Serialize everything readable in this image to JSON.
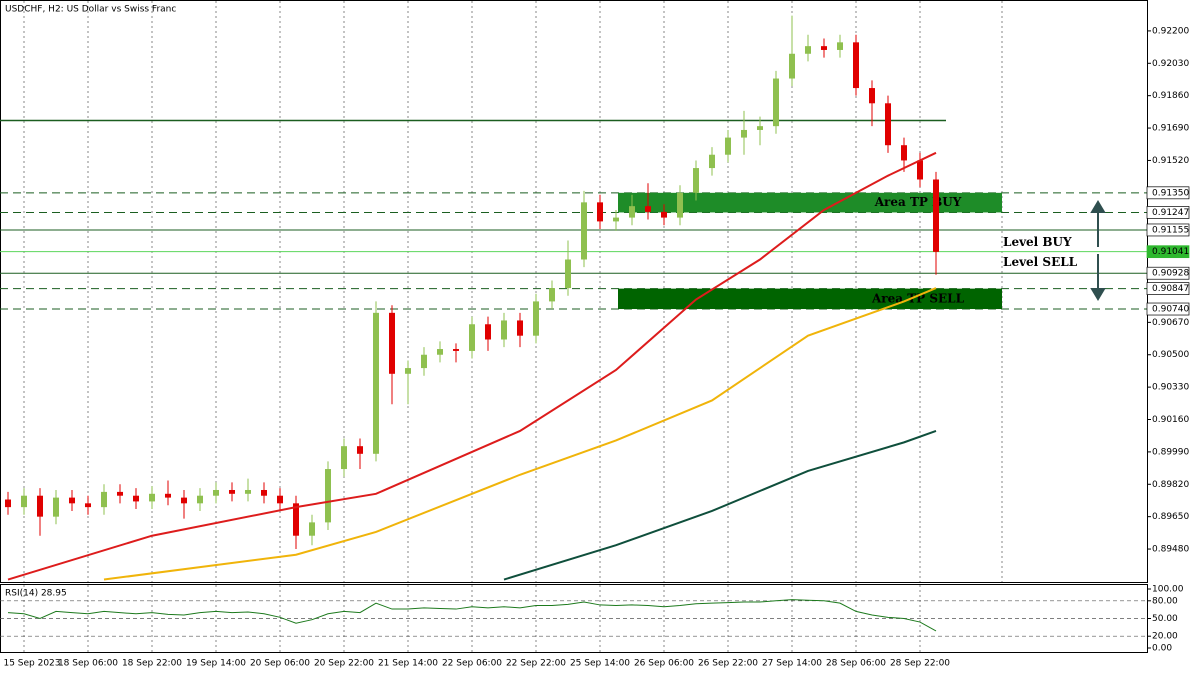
{
  "chart_data": {
    "type": "candlestick",
    "title": "USDCHF, H2:  US Dollar vs Swiss Franc",
    "up_color": "#8fc04f",
    "down_color": "#e00000",
    "categories": [
      null,
      "15 Sep 2023",
      null,
      null,
      null,
      "18 Sep 06:00",
      null,
      null,
      null,
      "18 Sep 22:00",
      null,
      null,
      null,
      "19 Sep 14:00",
      null,
      null,
      null,
      "20 Sep 06:00",
      null,
      null,
      null,
      "20 Sep 22:00",
      null,
      null,
      null,
      "21 Sep 14:00",
      null,
      null,
      null,
      "22 Sep 06:00",
      null,
      null,
      null,
      "22 Sep 22:00",
      null,
      null,
      null,
      "25 Sep 14:00",
      null,
      null,
      null,
      "26 Sep 06:00",
      null,
      null,
      null,
      "26 Sep 22:00",
      null,
      null,
      null,
      "27 Sep 14:00",
      null,
      null,
      null,
      "28 Sep 06:00",
      null,
      null,
      null,
      "28 Sep 22:00",
      null
    ],
    "open": [
      0.8974,
      0.897,
      0.8976,
      0.8965,
      0.8975,
      0.8972,
      0.897,
      0.8978,
      0.8976,
      0.8973,
      0.8977,
      0.8975,
      0.8972,
      0.8976,
      0.8979,
      0.8977,
      0.8979,
      0.8976,
      0.8972,
      0.8955,
      0.8962,
      0.899,
      0.9002,
      0.8998,
      0.9072,
      0.904,
      0.9043,
      0.905,
      0.9053,
      0.9052,
      0.9066,
      0.9058,
      0.9068,
      0.906,
      0.9078,
      0.9085,
      0.91,
      0.913,
      0.912,
      0.9122,
      0.9128,
      0.9125,
      0.9122,
      0.9135,
      0.9148,
      0.9155,
      0.9164,
      0.9168,
      0.917,
      0.9195,
      0.9208,
      0.9212,
      0.921,
      0.9214,
      0.919,
      0.9182,
      0.916,
      0.9152,
      0.9142
    ],
    "high": [
      0.8978,
      0.898,
      0.898,
      0.8979,
      0.8979,
      0.8976,
      0.8982,
      0.8982,
      0.898,
      0.8981,
      0.8984,
      0.8979,
      0.898,
      0.8983,
      0.8983,
      0.8985,
      0.8983,
      0.898,
      0.8976,
      0.8966,
      0.8994,
      0.9006,
      0.9006,
      0.9078,
      0.9076,
      0.9047,
      0.9054,
      0.9057,
      0.9056,
      0.907,
      0.907,
      0.9072,
      0.9072,
      0.9082,
      0.9089,
      0.911,
      0.9136,
      0.9134,
      0.9126,
      0.9134,
      0.914,
      0.9129,
      0.9139,
      0.9152,
      0.9159,
      0.9168,
      0.9178,
      0.9175,
      0.9199,
      0.9228,
      0.9218,
      0.9216,
      0.9218,
      0.9218,
      0.9194,
      0.9186,
      0.9164,
      0.9156,
      0.9146
    ],
    "low": [
      0.8966,
      0.8966,
      0.8955,
      0.8961,
      0.8968,
      0.8966,
      0.8966,
      0.8972,
      0.8969,
      0.8969,
      0.8971,
      0.8964,
      0.8968,
      0.8972,
      0.8973,
      0.8973,
      0.8972,
      0.8968,
      0.8948,
      0.895,
      0.8958,
      0.8986,
      0.899,
      0.8994,
      0.9024,
      0.9024,
      0.9039,
      0.9046,
      0.9046,
      0.9048,
      0.9052,
      0.9054,
      0.9054,
      0.9056,
      0.9074,
      0.9081,
      0.9096,
      0.9116,
      0.9115,
      0.9118,
      0.9121,
      0.9118,
      0.9118,
      0.9131,
      0.9144,
      0.9151,
      0.9155,
      0.916,
      0.9166,
      0.9191,
      0.9204,
      0.9206,
      0.9206,
      0.9186,
      0.917,
      0.9156,
      0.9146,
      0.9138,
      0.9092
    ],
    "close": [
      0.897,
      0.8976,
      0.8965,
      0.8975,
      0.8972,
      0.897,
      0.8978,
      0.8976,
      0.8973,
      0.8977,
      0.8975,
      0.8972,
      0.8976,
      0.8979,
      0.8977,
      0.8979,
      0.8976,
      0.8972,
      0.8955,
      0.8962,
      0.899,
      0.9002,
      0.8998,
      0.9072,
      0.904,
      0.9043,
      0.905,
      0.9053,
      0.9052,
      0.9066,
      0.9058,
      0.9068,
      0.906,
      0.9078,
      0.9085,
      0.91,
      0.913,
      0.912,
      0.9122,
      0.9128,
      0.9125,
      0.9122,
      0.9135,
      0.9148,
      0.9155,
      0.9164,
      0.9168,
      0.917,
      0.9195,
      0.9208,
      0.9212,
      0.921,
      0.9214,
      0.919,
      0.9182,
      0.916,
      0.9152,
      0.9142,
      0.9104
    ],
    "moving_averages": [
      {
        "color": "#dd1c1c",
        "x": [
          0,
          9,
          18,
          23,
          32,
          38,
          43,
          47,
          51,
          55,
          58
        ],
        "values": [
          0.8932,
          0.8955,
          0.897,
          0.8977,
          0.901,
          0.9042,
          0.9079,
          0.91,
          0.9126,
          0.9144,
          0.9156
        ]
      },
      {
        "color": "#f0b40a",
        "x": [
          6,
          18,
          23,
          32,
          38,
          44,
          50,
          56,
          58
        ],
        "values": [
          0.8932,
          0.8945,
          0.8957,
          0.8987,
          0.9005,
          0.9026,
          0.906,
          0.9078,
          0.9085
        ]
      },
      {
        "color": "#0f4f3c",
        "x": [
          31,
          38,
          44,
          50,
          56,
          58
        ],
        "values": [
          0.8932,
          0.895,
          0.8968,
          0.8989,
          0.9004,
          0.901
        ]
      }
    ],
    "ylim": [
      0.89307,
      0.92357
    ],
    "yticks": [
      {
        "value": 0.922,
        "label": "0.92200"
      },
      {
        "value": 0.9203,
        "label": "0.92030"
      },
      {
        "value": 0.9186,
        "label": "0.91860"
      },
      {
        "value": 0.9169,
        "label": "0.91690"
      },
      {
        "value": 0.9152,
        "label": "0.91520"
      },
      {
        "value": 0.9067,
        "label": "0.90670"
      },
      {
        "value": 0.905,
        "label": "0.90500"
      },
      {
        "value": 0.9033,
        "label": "0.90330"
      },
      {
        "value": 0.9016,
        "label": "0.90160"
      },
      {
        "value": 0.8999,
        "label": "0.89990"
      },
      {
        "value": 0.8982,
        "label": "0.89820"
      },
      {
        "value": 0.8965,
        "label": "0.89650"
      },
      {
        "value": 0.8948,
        "label": "0.89480"
      }
    ],
    "resistance": 0.9173,
    "levels": [
      {
        "value": 0.9135,
        "label": "0.91350",
        "style": "dashed"
      },
      {
        "value": 0.91247,
        "label": "0.91247",
        "style": "dashed"
      },
      {
        "value": 0.91155,
        "label": "0.91155",
        "style": "solid"
      },
      {
        "value": 0.91041,
        "label": "0.91041",
        "style": "current"
      },
      {
        "value": 0.90928,
        "label": "0.90928",
        "style": "solid"
      },
      {
        "value": 0.90847,
        "label": "0.90847",
        "style": "dashed"
      },
      {
        "value": 0.9074,
        "label": "0.90740",
        "style": "dashed"
      }
    ],
    "zones": [
      {
        "label": "Area TP BUY",
        "top": 0.9135,
        "bottom": 0.91247,
        "start": 38,
        "color": "#1e8c28"
      },
      {
        "label": "Area TP SELL",
        "top": 0.90847,
        "bottom": 0.9074,
        "start": 38,
        "color": "#006400"
      }
    ],
    "annotations": [
      "Level BUY",
      "Level SELL"
    ],
    "rsi": {
      "title": "RSI(14) 28.95",
      "color": "#1d7a1d",
      "values": [
        60,
        58,
        50,
        62,
        60,
        58,
        62,
        60,
        58,
        60,
        57,
        56,
        60,
        62,
        60,
        61,
        58,
        52,
        42,
        48,
        58,
        62,
        60,
        76,
        66,
        66,
        68,
        67,
        66,
        70,
        68,
        70,
        68,
        72,
        72,
        74,
        78,
        73,
        72,
        73,
        72,
        70,
        72,
        75,
        76,
        77,
        78,
        78,
        80,
        82,
        81,
        80,
        76,
        62,
        56,
        52,
        50,
        44,
        28.95
      ],
      "ylim": [
        0,
        100
      ],
      "yticks": [
        {
          "value": 100,
          "label": "100.00"
        },
        {
          "value": 80,
          "label": "80.00"
        },
        {
          "value": 50,
          "label": "50.00"
        },
        {
          "value": 20,
          "label": "20.00"
        },
        {
          "value": 0,
          "label": "0.00"
        }
      ]
    }
  }
}
